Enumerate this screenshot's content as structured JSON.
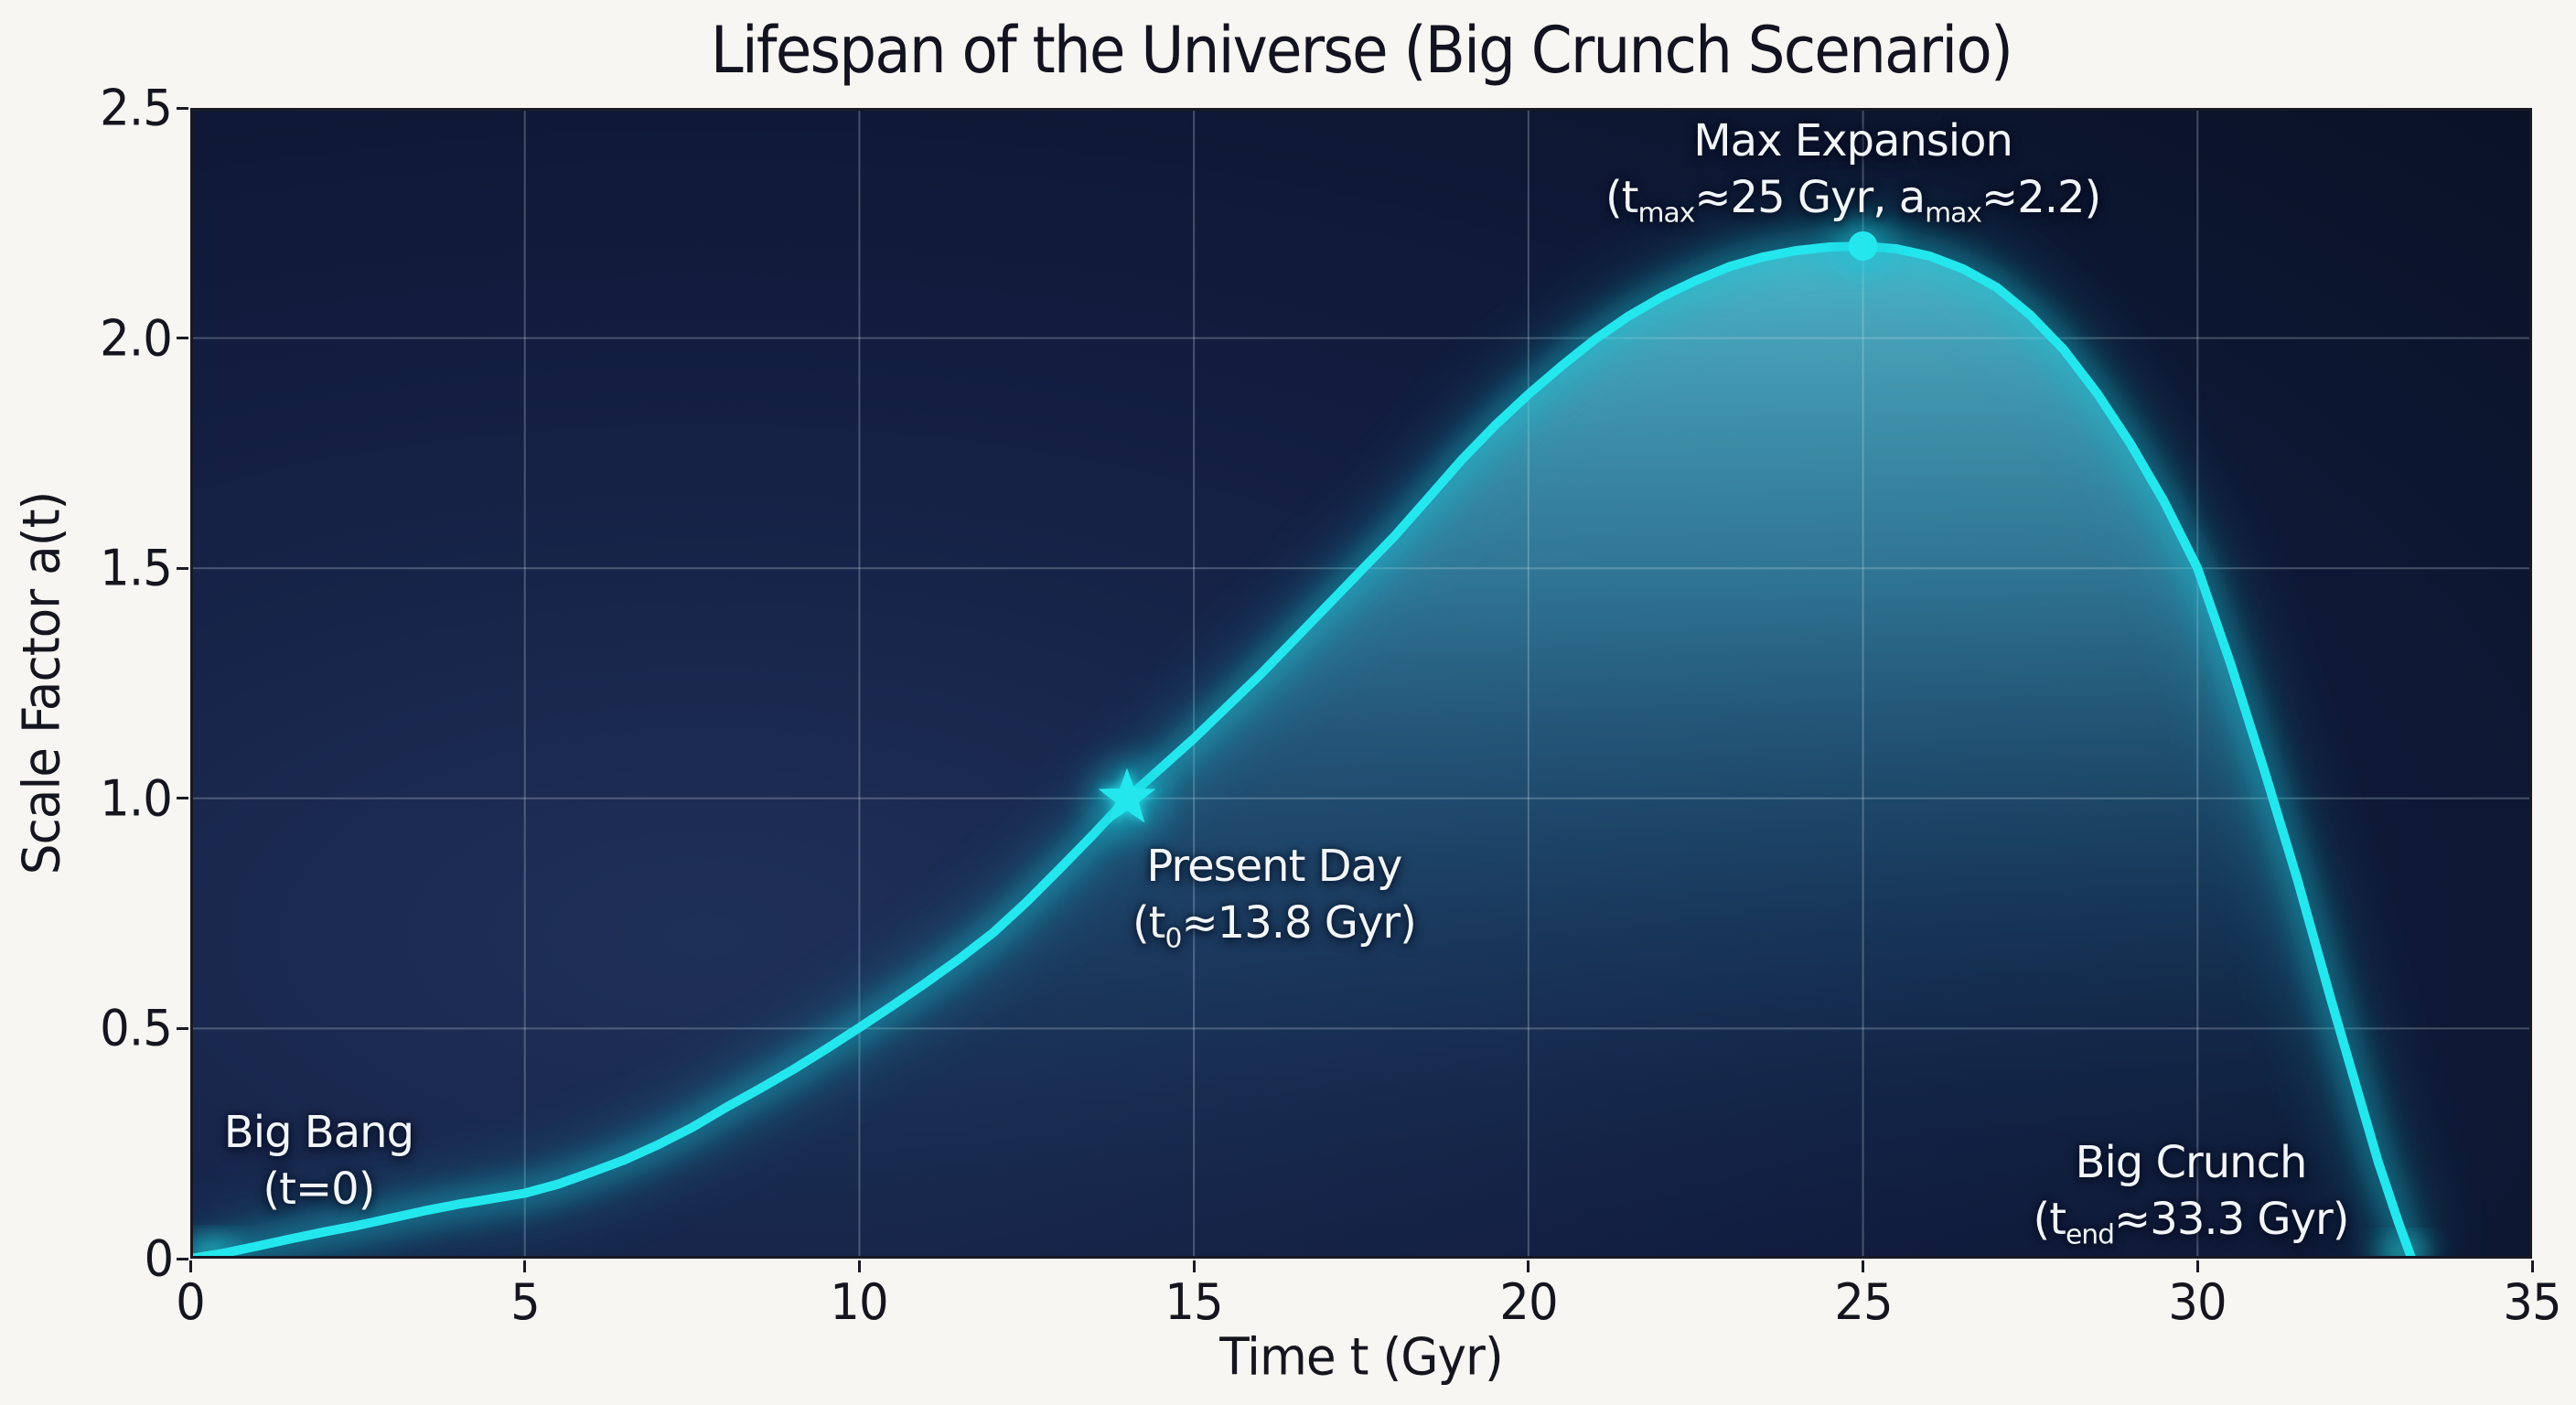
{
  "title": "Lifespan of the Universe (Big Crunch Scenario)",
  "axes": {
    "x_label": "Time t (Gyr)",
    "y_label": "Scale Factor a(t)",
    "x_ticks": [
      {
        "value": 0,
        "label": "0"
      },
      {
        "value": 5,
        "label": "5"
      },
      {
        "value": 10,
        "label": "10"
      },
      {
        "value": 15,
        "label": "15"
      },
      {
        "value": 20,
        "label": "20"
      },
      {
        "value": 25,
        "label": "25"
      },
      {
        "value": 30,
        "label": "30"
      },
      {
        "value": 35,
        "label": "35"
      }
    ],
    "y_ticks": [
      {
        "value": 0,
        "label": "0"
      },
      {
        "value": 0.5,
        "label": "0.5"
      },
      {
        "value": 1.0,
        "label": "1.0"
      },
      {
        "value": 1.5,
        "label": "1.5"
      },
      {
        "value": 2.0,
        "label": "2.0"
      },
      {
        "value": 2.5,
        "label": "2.5"
      }
    ]
  },
  "chart_data": {
    "type": "line",
    "title": "Lifespan of the Universe (Big Crunch Scenario)",
    "xlabel": "Time t (Gyr)",
    "ylabel": "Scale Factor a(t)",
    "xlim": [
      0,
      35
    ],
    "ylim": [
      0,
      2.5
    ],
    "grid": true,
    "legend": false,
    "series": [
      {
        "name": "Scale factor a(t)",
        "color": "#24e7ee",
        "points": [
          [
            0,
            0
          ],
          [
            0.5,
            0.012
          ],
          [
            1,
            0.027
          ],
          [
            1.5,
            0.043
          ],
          [
            2,
            0.058
          ],
          [
            2.5,
            0.072
          ],
          [
            3,
            0.088
          ],
          [
            3.5,
            0.104
          ],
          [
            4,
            0.118
          ],
          [
            4.5,
            0.13
          ],
          [
            5,
            0.142
          ],
          [
            5.5,
            0.162
          ],
          [
            6,
            0.188
          ],
          [
            6.5,
            0.215
          ],
          [
            7,
            0.248
          ],
          [
            7.5,
            0.285
          ],
          [
            8,
            0.328
          ],
          [
            8.5,
            0.368
          ],
          [
            9,
            0.41
          ],
          [
            9.5,
            0.455
          ],
          [
            10,
            0.502
          ],
          [
            10.5,
            0.55
          ],
          [
            11,
            0.6
          ],
          [
            11.5,
            0.652
          ],
          [
            12,
            0.708
          ],
          [
            12.5,
            0.775
          ],
          [
            13,
            0.848
          ],
          [
            13.5,
            0.922
          ],
          [
            14,
            1.0
          ],
          [
            14.5,
            1.065
          ],
          [
            15,
            1.13
          ],
          [
            15.5,
            1.2
          ],
          [
            16,
            1.27
          ],
          [
            16.5,
            1.345
          ],
          [
            17,
            1.42
          ],
          [
            17.5,
            1.495
          ],
          [
            18,
            1.57
          ],
          [
            18.5,
            1.652
          ],
          [
            19,
            1.735
          ],
          [
            19.5,
            1.81
          ],
          [
            20,
            1.878
          ],
          [
            20.5,
            1.94
          ],
          [
            21,
            1.998
          ],
          [
            21.5,
            2.048
          ],
          [
            22,
            2.09
          ],
          [
            22.5,
            2.125
          ],
          [
            23,
            2.155
          ],
          [
            23.5,
            2.176
          ],
          [
            24,
            2.19
          ],
          [
            24.5,
            2.198
          ],
          [
            25,
            2.2
          ],
          [
            25.5,
            2.194
          ],
          [
            26,
            2.178
          ],
          [
            26.5,
            2.15
          ],
          [
            27,
            2.11
          ],
          [
            27.5,
            2.05
          ],
          [
            28,
            1.975
          ],
          [
            28.5,
            1.88
          ],
          [
            29,
            1.77
          ],
          [
            29.5,
            1.645
          ],
          [
            30,
            1.5
          ],
          [
            30.5,
            1.29
          ],
          [
            31,
            1.06
          ],
          [
            31.5,
            0.82
          ],
          [
            32,
            0.56
          ],
          [
            32.4,
            0.36
          ],
          [
            32.7,
            0.21
          ],
          [
            33,
            0.08
          ],
          [
            33.15,
            0.02
          ],
          [
            33.2,
            0
          ]
        ]
      }
    ],
    "markers": [
      {
        "shape": "star",
        "x": 14,
        "y": 1.0,
        "meaning": "Present Day"
      },
      {
        "shape": "circle",
        "x": 25,
        "y": 2.2,
        "meaning": "Max Expansion"
      }
    ],
    "glow_endpoints": [
      {
        "x": 0.3,
        "y": 0.015,
        "meaning": "Big Bang start glow"
      },
      {
        "x": 33.05,
        "y": 0.01,
        "meaning": "Big Crunch end glow"
      }
    ],
    "annotations": [
      {
        "name": "big-bang",
        "x": 1.92,
        "y_top": 0.335,
        "lines": [
          "Big Bang",
          "(t=0)"
        ]
      },
      {
        "name": "present-day",
        "x": 16.2,
        "y_top": 0.915,
        "lines": [
          "Present Day",
          "(t<sub>0</sub>≈13.8 Gyr)"
        ]
      },
      {
        "name": "max-expansion",
        "x": 24.85,
        "y_top": 2.49,
        "lines": [
          "Max Expansion",
          "(t<sub>max</sub>≈25 Gyr, a<sub>max</sub>≈2.2)"
        ]
      },
      {
        "name": "big-crunch",
        "x": 29.9,
        "y_top": 0.27,
        "lines": [
          "Big Crunch",
          "(t<sub>end</sub>≈33.3 Gyr)"
        ]
      }
    ]
  },
  "colors": {
    "figure_bg": "#f7f6f2",
    "text": "#15151f",
    "annotation_text": "#f2f6fa",
    "plot_bg_center": "#1f3058",
    "plot_bg_mid": "#121d40",
    "plot_bg_edge": "#081022",
    "grid": "#cfe0e8",
    "curve": "#24e7ee",
    "curve_glow": "#12c4d6",
    "area_glow_top": "#60d6e6",
    "spine": "#191923"
  }
}
